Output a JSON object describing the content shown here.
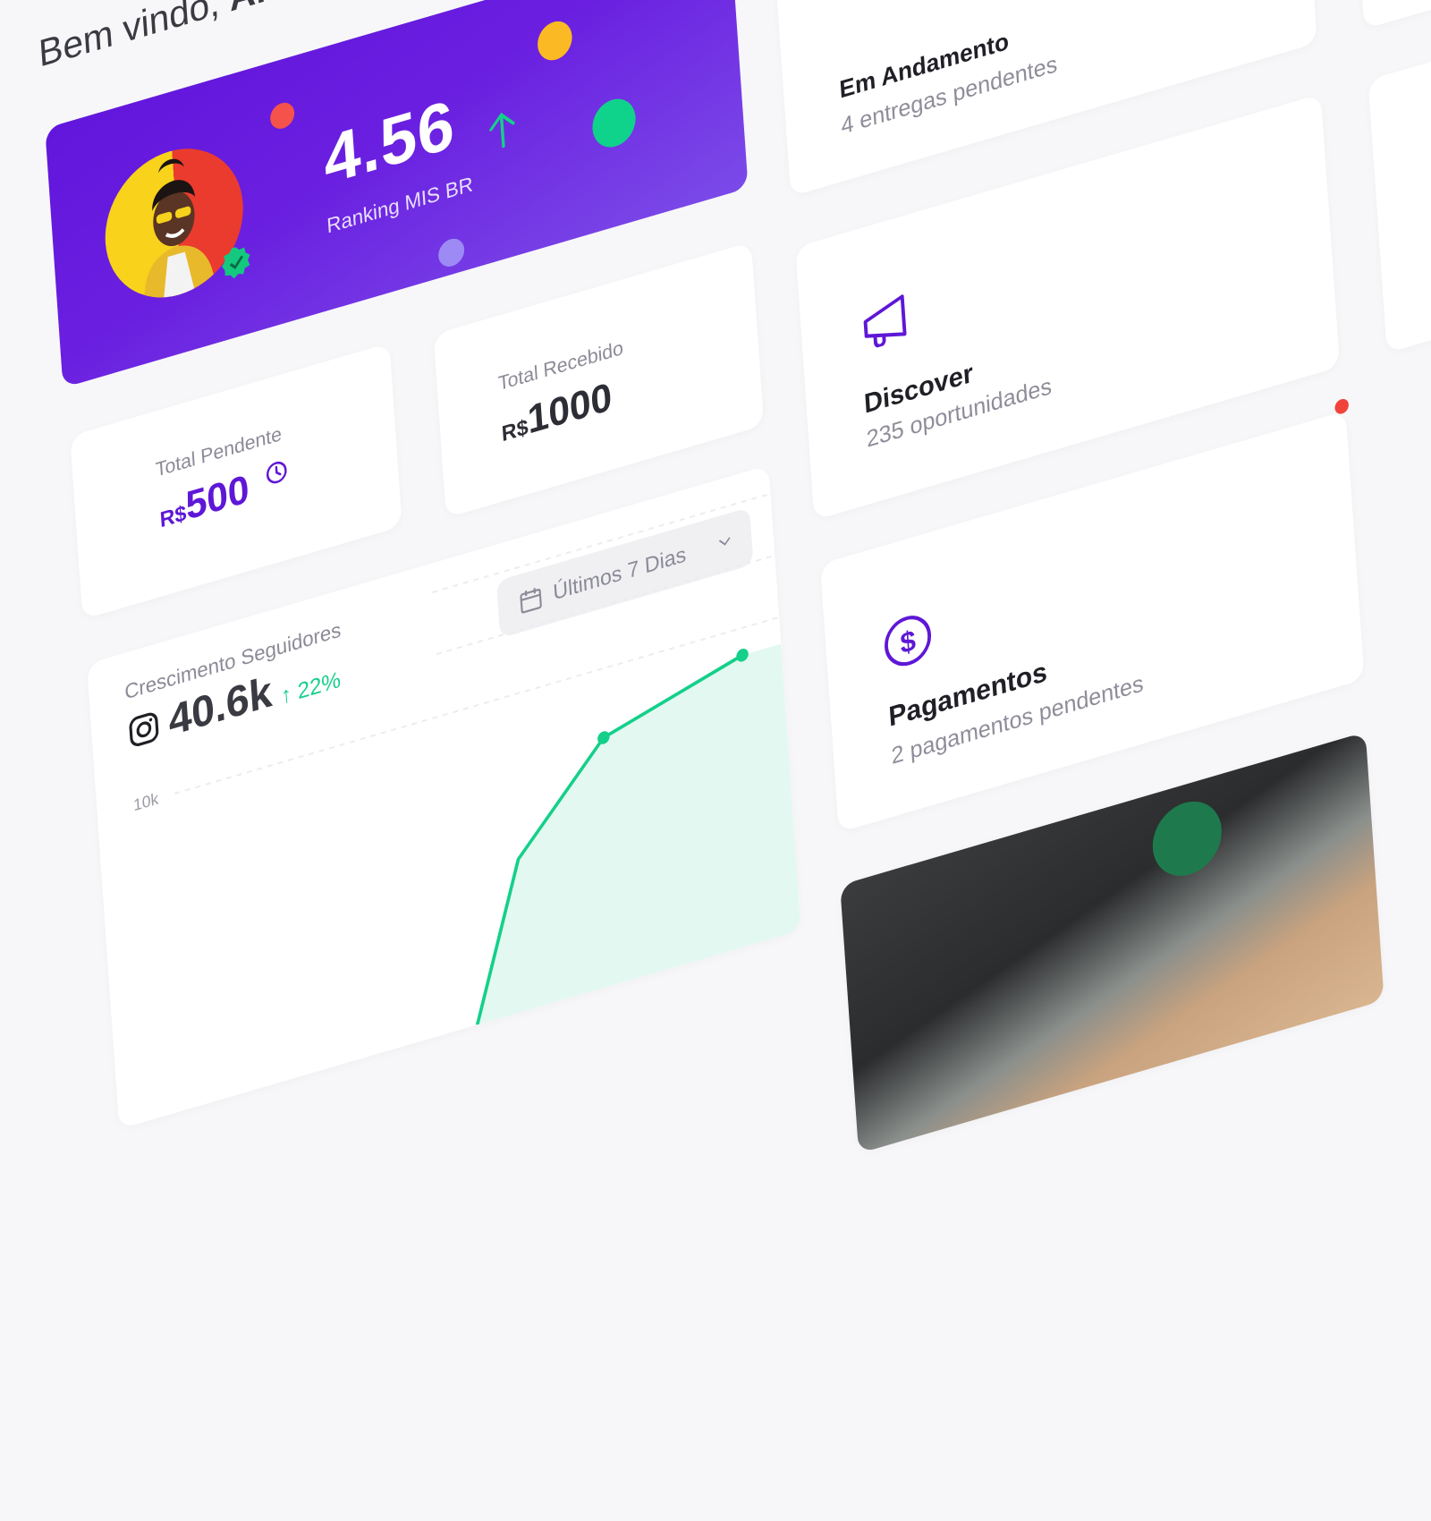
{
  "header": {
    "greeting": "Bem vindo,",
    "name": "Ama..."
  },
  "hero": {
    "score": "4.56",
    "score_trend": "up",
    "ranking_label": "Ranking MIS BR",
    "avatar_verified": true,
    "colors": {
      "background": "#6418dc",
      "trend": "#14d08a"
    }
  },
  "stats": {
    "pending": {
      "label": "Total Pendente",
      "currency": "R$",
      "value": "500",
      "icon": "clock-icon"
    },
    "received": {
      "label": "Total Recebido",
      "currency": "R$",
      "value": "1000"
    }
  },
  "followers": {
    "title": "Crescimento Seguidores",
    "platform_icon": "instagram-icon",
    "value": "40.6k",
    "change": "22%",
    "change_direction": "up",
    "period_select": "Últimos 7 Dias"
  },
  "chart_data": {
    "type": "area",
    "ytick_labels": [
      "10k"
    ],
    "values": [
      2100,
      6700,
      8700
    ],
    "grid": true,
    "color": "#14d08a",
    "fill": "#e3f8f1"
  },
  "cards": [
    {
      "title": "Em Andamento",
      "subtitle": "4 entregas pendentes",
      "icon": "kanban-icon"
    },
    {
      "title": "Discover",
      "subtitle": "235 oportunidades",
      "icon": "megaphone-icon"
    },
    {
      "title": "Pagamentos",
      "subtitle": "2 pagamentos pendentes",
      "icon": "dollar-circle-icon",
      "notification": true
    }
  ],
  "colors": {
    "accent": "#5e17d6",
    "green": "#14d08a",
    "notification": "#f0443a",
    "background": "#f7f7f9"
  }
}
